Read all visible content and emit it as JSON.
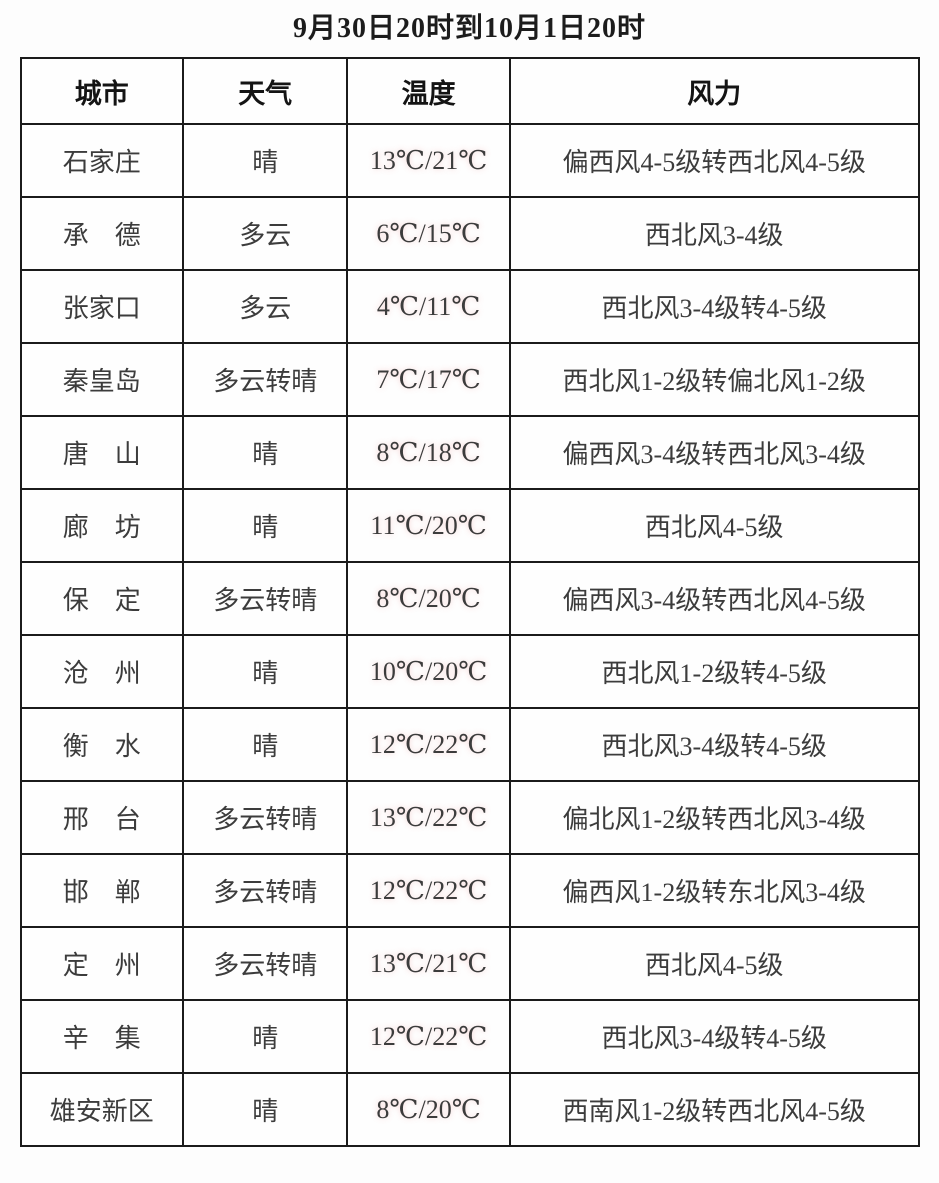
{
  "title": "9月30日20时到10月1日20时",
  "colors": {
    "temperature": "#b03a3a",
    "body_text": "#3c3c3c",
    "header_text": "#141414",
    "border": "#1b1b1b",
    "background": "#fdfdfd"
  },
  "table": {
    "headers": [
      "城市",
      "天气",
      "温度",
      "风力"
    ],
    "rows": [
      {
        "city": "石家庄",
        "weather": "晴",
        "temperature": "13℃/21℃",
        "wind": "偏西风4-5级转西北风4-5级"
      },
      {
        "city": "承　德",
        "weather": "多云",
        "temperature": "6℃/15℃",
        "wind": "西北风3-4级"
      },
      {
        "city": "张家口",
        "weather": "多云",
        "temperature": "4℃/11℃",
        "wind": "西北风3-4级转4-5级"
      },
      {
        "city": "秦皇岛",
        "weather": "多云转晴",
        "temperature": "7℃/17℃",
        "wind": "西北风1-2级转偏北风1-2级"
      },
      {
        "city": "唐　山",
        "weather": "晴",
        "temperature": "8℃/18℃",
        "wind": "偏西风3-4级转西北风3-4级"
      },
      {
        "city": "廊　坊",
        "weather": "晴",
        "temperature": "11℃/20℃",
        "wind": "西北风4-5级"
      },
      {
        "city": "保　定",
        "weather": "多云转晴",
        "temperature": "8℃/20℃",
        "wind": "偏西风3-4级转西北风4-5级"
      },
      {
        "city": "沧　州",
        "weather": "晴",
        "temperature": "10℃/20℃",
        "wind": "西北风1-2级转4-5级"
      },
      {
        "city": "衡　水",
        "weather": "晴",
        "temperature": "12℃/22℃",
        "wind": "西北风3-4级转4-5级"
      },
      {
        "city": "邢　台",
        "weather": "多云转晴",
        "temperature": "13℃/22℃",
        "wind": "偏北风1-2级转西北风3-4级"
      },
      {
        "city": "邯　郸",
        "weather": "多云转晴",
        "temperature": "12℃/22℃",
        "wind": "偏西风1-2级转东北风3-4级"
      },
      {
        "city": "定　州",
        "weather": "多云转晴",
        "temperature": "13℃/21℃",
        "wind": "西北风4-5级"
      },
      {
        "city": "辛　集",
        "weather": "晴",
        "temperature": "12℃/22℃",
        "wind": "西北风3-4级转4-5级"
      },
      {
        "city": "雄安新区",
        "weather": "晴",
        "temperature": "8℃/20℃",
        "wind": "西南风1-2级转西北风4-5级"
      }
    ]
  }
}
